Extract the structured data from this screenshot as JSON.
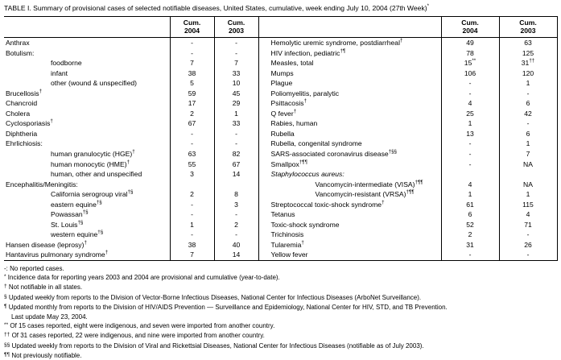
{
  "page_title": "TABLE I. Summary of provisional cases of selected notifiable diseases, United States, cumulative, week ending July 10, 2004 (27th Week)*",
  "table": {
    "header": {
      "cum": "Cum.",
      "y2004": "2004",
      "y2003": "2003"
    },
    "left_rows": [
      {
        "label": "Anthrax",
        "indent": 0,
        "italic": false,
        "v2004": "-",
        "v2003": "-"
      },
      {
        "label": "Botulism:",
        "indent": 0,
        "italic": false,
        "v2004": "-",
        "v2003": "-"
      },
      {
        "label": "foodborne",
        "indent": 1,
        "italic": false,
        "v2004": "7",
        "v2003": "7"
      },
      {
        "label": "infant",
        "indent": 1,
        "italic": false,
        "v2004": "38",
        "v2003": "33"
      },
      {
        "label": "other (wound & unspecified)",
        "indent": 1,
        "italic": false,
        "v2004": "5",
        "v2003": "10"
      },
      {
        "label": "Brucellosis†",
        "indent": 0,
        "italic": false,
        "v2004": "59",
        "v2003": "45"
      },
      {
        "label": "Chancroid",
        "indent": 0,
        "italic": false,
        "v2004": "17",
        "v2003": "29"
      },
      {
        "label": "Cholera",
        "indent": 0,
        "italic": false,
        "v2004": "2",
        "v2003": "1"
      },
      {
        "label": "Cyclosporiasis†",
        "indent": 0,
        "italic": false,
        "v2004": "67",
        "v2003": "33"
      },
      {
        "label": "Diphtheria",
        "indent": 0,
        "italic": false,
        "v2004": "-",
        "v2003": "-"
      },
      {
        "label": "Ehrlichiosis:",
        "indent": 0,
        "italic": false,
        "v2004": "-",
        "v2003": "-"
      },
      {
        "label": "human granulocytic (HGE)†",
        "indent": 1,
        "italic": false,
        "v2004": "63",
        "v2003": "82"
      },
      {
        "label": "human monocytic (HME)†",
        "indent": 1,
        "italic": false,
        "v2004": "55",
        "v2003": "67"
      },
      {
        "label": "human, other and unspecified",
        "indent": 1,
        "italic": false,
        "v2004": "3",
        "v2003": "14"
      },
      {
        "label": "Encephalitis/Meningitis:",
        "indent": 0,
        "italic": false,
        "v2004": "",
        "v2003": ""
      },
      {
        "label": "California serogroup viral†§",
        "indent": 1,
        "italic": false,
        "v2004": "2",
        "v2003": "8"
      },
      {
        "label": "eastern equine†§",
        "indent": 1,
        "italic": false,
        "v2004": "-",
        "v2003": "3"
      },
      {
        "label": "Powassan†§",
        "indent": 1,
        "italic": false,
        "v2004": "-",
        "v2003": "-"
      },
      {
        "label": "St. Louis†§",
        "indent": 1,
        "italic": false,
        "v2004": "1",
        "v2003": "2"
      },
      {
        "label": "western equine†§",
        "indent": 1,
        "italic": false,
        "v2004": "-",
        "v2003": "-"
      },
      {
        "label": "Hansen disease (leprosy)†",
        "indent": 0,
        "italic": false,
        "v2004": "38",
        "v2003": "40"
      },
      {
        "label": "Hantavirus pulmonary syndrome†",
        "indent": 0,
        "italic": false,
        "v2004": "7",
        "v2003": "14"
      }
    ],
    "right_rows": [
      {
        "label": "Hemolytic uremic syndrome, postdiarrheal†",
        "indent": 0,
        "italic": false,
        "v2004": "49",
        "v2003": "63"
      },
      {
        "label": "HIV infection, pediatric†¶",
        "indent": 0,
        "italic": false,
        "v2004": "78",
        "v2003": "125"
      },
      {
        "label": "Measles, total",
        "indent": 0,
        "italic": false,
        "v2004": "15**",
        "v2003": "31††"
      },
      {
        "label": "Mumps",
        "indent": 0,
        "italic": false,
        "v2004": "106",
        "v2003": "120"
      },
      {
        "label": "Plague",
        "indent": 0,
        "italic": false,
        "v2004": "-",
        "v2003": "1"
      },
      {
        "label": "Poliomyelitis, paralytic",
        "indent": 0,
        "italic": false,
        "v2004": "-",
        "v2003": "-"
      },
      {
        "label": "Psittacosis†",
        "indent": 0,
        "italic": false,
        "v2004": "4",
        "v2003": "6"
      },
      {
        "label": "Q fever†",
        "indent": 0,
        "italic": false,
        "v2004": "25",
        "v2003": "42"
      },
      {
        "label": "Rabies, human",
        "indent": 0,
        "italic": false,
        "v2004": "1",
        "v2003": "-"
      },
      {
        "label": "Rubella",
        "indent": 0,
        "italic": false,
        "v2004": "13",
        "v2003": "6"
      },
      {
        "label": "Rubella, congenital syndrome",
        "indent": 0,
        "italic": false,
        "v2004": "-",
        "v2003": "1"
      },
      {
        "label": "SARS-associated coronavirus disease†§§",
        "indent": 0,
        "italic": false,
        "v2004": "-",
        "v2003": "7"
      },
      {
        "label": "Smallpox†¶¶",
        "indent": 0,
        "italic": false,
        "v2004": "-",
        "v2003": "NA"
      },
      {
        "label": "Staphylococcus aureus:",
        "indent": 0,
        "italic": true,
        "v2004": "",
        "v2003": ""
      },
      {
        "label": "Vancomycin-intermediate (VISA)†¶¶",
        "indent": 1,
        "italic": false,
        "v2004": "4",
        "v2003": "NA"
      },
      {
        "label": "Vancomycin-resistant (VRSA)†¶¶",
        "indent": 1,
        "italic": false,
        "v2004": "1",
        "v2003": "1"
      },
      {
        "label": "Streptococcal toxic-shock syndrome†",
        "indent": 0,
        "italic": false,
        "v2004": "61",
        "v2003": "115"
      },
      {
        "label": "Tetanus",
        "indent": 0,
        "italic": false,
        "v2004": "6",
        "v2003": "4"
      },
      {
        "label": "Toxic-shock syndrome",
        "indent": 0,
        "italic": false,
        "v2004": "52",
        "v2003": "71"
      },
      {
        "label": "Trichinosis",
        "indent": 0,
        "italic": false,
        "v2004": "2",
        "v2003": "-"
      },
      {
        "label": "Tularemia†",
        "indent": 0,
        "italic": false,
        "v2004": "31",
        "v2003": "26"
      },
      {
        "label": "Yellow fever",
        "indent": 0,
        "italic": false,
        "v2004": "-",
        "v2003": "-"
      }
    ]
  },
  "footnotes": [
    {
      "marker": "-:",
      "sup": false,
      "lines": [
        "No reported cases."
      ]
    },
    {
      "marker": "*",
      "sup": true,
      "lines": [
        "Incidence data for reporting years 2003 and 2004 are provisional and cumulative (year-to-date)."
      ]
    },
    {
      "marker": "†",
      "sup": true,
      "lines": [
        "Not notifiable in all states."
      ]
    },
    {
      "marker": "§",
      "sup": true,
      "lines": [
        "Updated weekly from reports to the Division of Vector-Borne Infectious Diseases, National Center for Infectious Diseases (ArboNet Surveillance)."
      ]
    },
    {
      "marker": "¶",
      "sup": true,
      "lines": [
        "Updated monthly from reports to the Division of HIV/AIDS Prevention — Surveillance and Epidemiology, National Center for HIV, STD, and TB Prevention.",
        "Last update May 23, 2004."
      ]
    },
    {
      "marker": "**",
      "sup": true,
      "lines": [
        "Of 15 cases reported, eight were indigenous, and seven were imported from another country."
      ]
    },
    {
      "marker": "††",
      "sup": true,
      "lines": [
        "Of 31 cases reported, 22 were indigenous, and nine were imported from another country."
      ]
    },
    {
      "marker": "§§",
      "sup": true,
      "lines": [
        "Updated weekly from reports to the Division of Viral and Rickettsial Diseases, National Center for Infectious Diseases (notifiable as of July 2003)."
      ]
    },
    {
      "marker": "¶¶",
      "sup": true,
      "lines": [
        "Not previously notifiable."
      ]
    }
  ]
}
